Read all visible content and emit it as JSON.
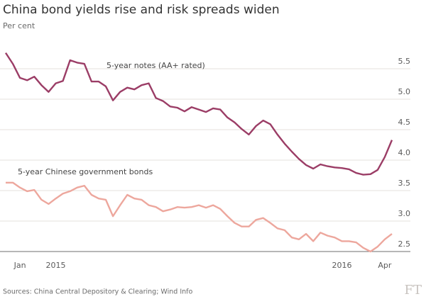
{
  "chart_data": {
    "type": "line",
    "title": "China bond yields rise and risk spreads widen",
    "subtitle": "Per cent",
    "source": "Sources: China Central Depository & Clearing; Wind Info",
    "logo": "FT",
    "categories": [
      null,
      null,
      "Jan",
      null,
      null,
      null,
      null,
      "2015",
      null,
      null,
      null,
      null,
      null,
      null,
      null,
      null,
      null,
      null,
      null,
      null,
      null,
      null,
      null,
      null,
      null,
      null,
      null,
      null,
      null,
      null,
      null,
      null,
      null,
      null,
      null,
      null,
      null,
      null,
      null,
      null,
      null,
      null,
      null,
      null,
      null,
      null,
      null,
      "2016",
      null,
      null,
      null,
      null,
      null,
      "Apr",
      null
    ],
    "series": [
      {
        "name": "5-year notes (AA+ rated)",
        "color": "#9b3d66",
        "values": [
          5.76,
          5.58,
          5.35,
          5.31,
          5.37,
          5.23,
          5.12,
          5.26,
          5.3,
          5.64,
          5.6,
          5.58,
          5.29,
          5.29,
          5.21,
          4.98,
          5.12,
          5.19,
          5.16,
          5.23,
          5.26,
          5.02,
          4.97,
          4.88,
          4.86,
          4.8,
          4.87,
          4.83,
          4.79,
          4.85,
          4.83,
          4.7,
          4.62,
          4.51,
          4.42,
          4.56,
          4.65,
          4.59,
          4.42,
          4.27,
          4.14,
          4.02,
          3.92,
          3.86,
          3.93,
          3.9,
          3.88,
          3.87,
          3.85,
          3.79,
          3.76,
          3.77,
          3.84,
          4.05,
          4.33
        ]
      },
      {
        "name": "5-year Chinese government bonds",
        "color": "#eda79d",
        "values": [
          3.63,
          3.63,
          3.55,
          3.49,
          3.51,
          3.35,
          3.28,
          3.37,
          3.45,
          3.49,
          3.55,
          3.58,
          3.43,
          3.37,
          3.35,
          3.08,
          3.26,
          3.43,
          3.37,
          3.35,
          3.26,
          3.23,
          3.16,
          3.19,
          3.23,
          3.22,
          3.23,
          3.26,
          3.22,
          3.26,
          3.2,
          3.08,
          2.97,
          2.91,
          2.91,
          3.02,
          3.05,
          2.97,
          2.88,
          2.85,
          2.73,
          2.7,
          2.79,
          2.67,
          2.81,
          2.76,
          2.73,
          2.67,
          2.67,
          2.65,
          2.56,
          2.5,
          2.58,
          2.7,
          2.79
        ]
      }
    ],
    "ylim": [
      2.4,
      5.9
    ],
    "yticks": [
      {
        "value": 2.5,
        "label": "2.5"
      },
      {
        "value": 3,
        "label": "3.0"
      },
      {
        "value": 3.5,
        "label": "3.5"
      },
      {
        "value": 4,
        "label": "4.0"
      },
      {
        "value": 4.5,
        "label": "4.5"
      },
      {
        "value": 5,
        "label": "5.0"
      },
      {
        "value": 5.5,
        "label": "5.5"
      }
    ],
    "grid": true
  }
}
